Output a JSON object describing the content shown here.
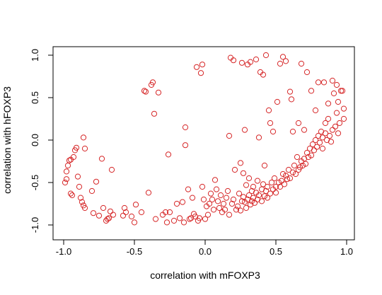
{
  "chart_data": {
    "type": "scatter",
    "xlabel": "correlation with mFOXP3",
    "ylabel": "correlation with hFOXP3",
    "xlim": [
      -1.0,
      1.0
    ],
    "ylim": [
      -1.0,
      1.0
    ],
    "x_ticks": [
      "-1.0",
      "-0.5",
      "0.0",
      "0.5",
      "1.0"
    ],
    "y_ticks": [
      "-1.0",
      "-0.5",
      "0.0",
      "0.5",
      "1.0"
    ],
    "grid": false,
    "point_color": "#d62728",
    "series": [
      {
        "points": [
          [
            -0.99,
            -0.5
          ],
          [
            -0.98,
            -0.46
          ],
          [
            -0.98,
            -0.37
          ],
          [
            -0.97,
            -0.3
          ],
          [
            -0.96,
            -0.24
          ],
          [
            -0.95,
            -0.23
          ],
          [
            -0.95,
            -0.63
          ],
          [
            -0.94,
            -0.65
          ],
          [
            -0.93,
            -0.2
          ],
          [
            -0.92,
            -0.12
          ],
          [
            -0.91,
            -0.09
          ],
          [
            -0.9,
            -0.43
          ],
          [
            -0.89,
            -0.55
          ],
          [
            -0.88,
            -0.68
          ],
          [
            -0.87,
            -0.73
          ],
          [
            -0.86,
            -0.77
          ],
          [
            -0.85,
            -0.8
          ],
          [
            -0.86,
            0.03
          ],
          [
            -0.85,
            -0.1
          ],
          [
            -0.8,
            -0.6
          ],
          [
            -0.79,
            -0.86
          ],
          [
            -0.77,
            -0.49
          ],
          [
            -0.75,
            -0.89
          ],
          [
            -0.73,
            -0.22
          ],
          [
            -0.72,
            -0.8
          ],
          [
            -0.7,
            -0.95
          ],
          [
            -0.69,
            -0.93
          ],
          [
            -0.68,
            -0.92
          ],
          [
            -0.67,
            -0.84
          ],
          [
            -0.66,
            -0.35
          ],
          [
            -0.65,
            -0.88
          ],
          [
            -0.58,
            -0.89
          ],
          [
            -0.57,
            -0.8
          ],
          [
            -0.56,
            -0.85
          ],
          [
            -0.52,
            -0.9
          ],
          [
            -0.5,
            -0.97
          ],
          [
            -0.49,
            -0.76
          ],
          [
            -0.45,
            -0.85
          ],
          [
            -0.43,
            0.58
          ],
          [
            -0.42,
            0.57
          ],
          [
            -0.4,
            -0.62
          ],
          [
            -0.38,
            0.65
          ],
          [
            -0.37,
            0.68
          ],
          [
            -0.36,
            0.31
          ],
          [
            -0.35,
            -0.93
          ],
          [
            -0.33,
            0.56
          ],
          [
            -0.3,
            -0.88
          ],
          [
            -0.28,
            -0.85
          ],
          [
            -0.27,
            -0.97
          ],
          [
            -0.25,
            -0.85
          ],
          [
            -0.26,
            -0.17
          ],
          [
            -0.22,
            -0.95
          ],
          [
            -0.2,
            -0.75
          ],
          [
            -0.18,
            -0.92
          ],
          [
            -0.16,
            -0.73
          ],
          [
            -0.15,
            -0.97
          ],
          [
            -0.14,
            0.15
          ],
          [
            -0.14,
            -0.06
          ],
          [
            -0.12,
            -0.58
          ],
          [
            -0.11,
            -0.93
          ],
          [
            -0.1,
            -0.92
          ],
          [
            -0.09,
            -0.68
          ],
          [
            -0.08,
            -0.87
          ],
          [
            -0.07,
            -0.9
          ],
          [
            -0.06,
            0.86
          ],
          [
            -0.05,
            -0.95
          ],
          [
            -0.04,
            -0.92
          ],
          [
            -0.03,
            0.79
          ],
          [
            -0.02,
            0.89
          ],
          [
            -0.02,
            -0.55
          ],
          [
            -0.01,
            -0.7
          ],
          [
            0.0,
            -0.93
          ],
          [
            0.01,
            -0.78
          ],
          [
            0.02,
            -0.88
          ],
          [
            0.03,
            -0.75
          ],
          [
            0.04,
            -0.63
          ],
          [
            0.05,
            -0.7
          ],
          [
            0.06,
            -0.82
          ],
          [
            0.07,
            -0.47
          ],
          [
            0.08,
            -0.58
          ],
          [
            0.09,
            -0.72
          ],
          [
            0.1,
            -0.8
          ],
          [
            0.11,
            -0.65
          ],
          [
            0.12,
            -0.85
          ],
          [
            0.13,
            -0.75
          ],
          [
            0.14,
            -0.82
          ],
          [
            0.15,
            -0.68
          ],
          [
            0.16,
            -0.6
          ],
          [
            0.17,
            -0.88
          ],
          [
            0.17,
            0.05
          ],
          [
            0.18,
            0.97
          ],
          [
            0.19,
            -0.75
          ],
          [
            0.2,
            -0.7
          ],
          [
            0.2,
            0.94
          ],
          [
            0.21,
            -0.35
          ],
          [
            0.22,
            -0.82
          ],
          [
            0.23,
            -0.78
          ],
          [
            0.24,
            -0.63
          ],
          [
            0.25,
            -0.83
          ],
          [
            0.25,
            -0.27
          ],
          [
            0.26,
            -0.72
          ],
          [
            0.26,
            0.91
          ],
          [
            0.27,
            -0.67
          ],
          [
            0.27,
            -0.39
          ],
          [
            0.28,
            -0.73
          ],
          [
            0.28,
            0.12
          ],
          [
            0.29,
            -0.8
          ],
          [
            0.29,
            -0.53
          ],
          [
            0.3,
            -0.7
          ],
          [
            0.3,
            0.89
          ],
          [
            0.31,
            -0.65
          ],
          [
            0.31,
            -0.45
          ],
          [
            0.32,
            -0.76
          ],
          [
            0.32,
            0.92
          ],
          [
            0.33,
            -0.6
          ],
          [
            0.33,
            -0.72
          ],
          [
            0.34,
            -0.55
          ],
          [
            0.34,
            -0.68
          ],
          [
            0.35,
            -0.74
          ],
          [
            0.36,
            0.95
          ],
          [
            0.36,
            -0.62
          ],
          [
            0.37,
            -0.48
          ],
          [
            0.37,
            -0.7
          ],
          [
            0.38,
            -0.65
          ],
          [
            0.38,
            0.03
          ],
          [
            0.39,
            0.8
          ],
          [
            0.4,
            -0.58
          ],
          [
            0.4,
            -0.72
          ],
          [
            0.41,
            -0.52
          ],
          [
            0.41,
            0.77
          ],
          [
            0.42,
            -0.66
          ],
          [
            0.42,
            -0.3
          ],
          [
            0.43,
            -0.6
          ],
          [
            0.43,
            1.0
          ],
          [
            0.44,
            -0.55
          ],
          [
            0.44,
            -0.68
          ],
          [
            0.45,
            0.35
          ],
          [
            0.46,
            -0.63
          ],
          [
            0.46,
            0.2
          ],
          [
            0.47,
            -0.5
          ],
          [
            0.48,
            -0.58
          ],
          [
            0.48,
            0.1
          ],
          [
            0.49,
            -0.45
          ],
          [
            0.5,
            -0.55
          ],
          [
            0.5,
            -0.62
          ],
          [
            0.51,
            0.45
          ],
          [
            0.52,
            -0.5
          ],
          [
            0.53,
            -0.55
          ],
          [
            0.53,
            0.9
          ],
          [
            0.54,
            -0.48
          ],
          [
            0.55,
            0.98
          ],
          [
            0.55,
            -0.4
          ],
          [
            0.56,
            -0.52
          ],
          [
            0.57,
            0.93
          ],
          [
            0.57,
            -0.42
          ],
          [
            0.58,
            -0.46
          ],
          [
            0.59,
            -0.35
          ],
          [
            0.6,
            0.57
          ],
          [
            0.6,
            -0.45
          ],
          [
            0.61,
            0.48
          ],
          [
            0.62,
            -0.38
          ],
          [
            0.62,
            0.1
          ],
          [
            0.63,
            -0.3
          ],
          [
            0.64,
            -0.4
          ],
          [
            0.65,
            -0.2
          ],
          [
            0.66,
            -0.35
          ],
          [
            0.67,
            -0.32
          ],
          [
            0.68,
            -0.25
          ],
          [
            0.68,
            0.9
          ],
          [
            0.69,
            -0.3
          ],
          [
            0.7,
            -0.22
          ],
          [
            0.71,
            -0.28
          ],
          [
            0.72,
            -0.15
          ],
          [
            0.72,
            0.8
          ],
          [
            0.73,
            -0.2
          ],
          [
            0.74,
            -0.1
          ],
          [
            0.75,
            -0.18
          ],
          [
            0.75,
            0.58
          ],
          [
            0.76,
            -0.05
          ],
          [
            0.77,
            -0.12
          ],
          [
            0.78,
            0.0
          ],
          [
            0.79,
            -0.08
          ],
          [
            0.8,
            0.05
          ],
          [
            0.8,
            0.68
          ],
          [
            0.81,
            -0.03
          ],
          [
            0.82,
            0.1
          ],
          [
            0.83,
            0.03
          ],
          [
            0.83,
            -0.1
          ],
          [
            0.84,
            0.68
          ],
          [
            0.85,
            0.08
          ],
          [
            0.86,
            0.0
          ],
          [
            0.87,
            0.25
          ],
          [
            0.87,
            0.43
          ],
          [
            0.88,
            0.05
          ],
          [
            0.89,
            -0.02
          ],
          [
            0.9,
            0.7
          ],
          [
            0.9,
            0.12
          ],
          [
            0.91,
            0.55
          ],
          [
            0.92,
            0.16
          ],
          [
            0.93,
            0.32
          ],
          [
            0.94,
            0.45
          ],
          [
            0.95,
            0.2
          ],
          [
            0.96,
            0.58
          ],
          [
            0.97,
            0.58
          ],
          [
            0.98,
            0.37
          ],
          [
            0.98,
            0.25
          ],
          [
            0.93,
            0.65
          ],
          [
            0.94,
            0.08
          ],
          [
            0.85,
            0.2
          ],
          [
            0.78,
            0.35
          ],
          [
            0.7,
            0.12
          ],
          [
            0.66,
            0.2
          ]
        ]
      }
    ]
  }
}
